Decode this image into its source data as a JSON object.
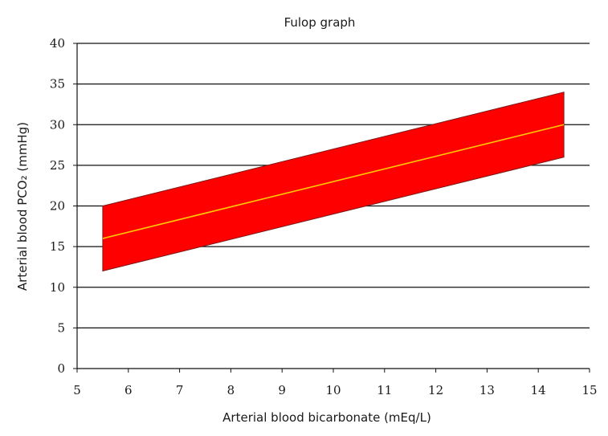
{
  "chart_data": {
    "type": "area",
    "title": "Fulop graph",
    "xlabel": "Arterial blood bicarbonate (mEq/L)",
    "ylabel": "Arterial blood PCO₂ (mmHg)",
    "xlim": [
      5,
      15
    ],
    "ylim": [
      0,
      40
    ],
    "x_ticks": [
      "5",
      "6",
      "7",
      "8",
      "9",
      "10",
      "11",
      "12",
      "13",
      "14",
      "15"
    ],
    "y_ticks": [
      "0",
      "5",
      "10",
      "15",
      "20",
      "25",
      "30",
      "35",
      "40"
    ],
    "grid": "horizontal",
    "band": {
      "x": [
        5.5,
        14.5
      ],
      "upper": [
        20,
        34
      ],
      "lower": [
        12,
        26
      ],
      "fill_color": "#ff0000",
      "edge_color": "#7a1a1a"
    },
    "series": [
      {
        "x": [
          5.5,
          14.5
        ],
        "y": [
          16,
          30
        ],
        "color": "#ffcc00"
      }
    ]
  }
}
